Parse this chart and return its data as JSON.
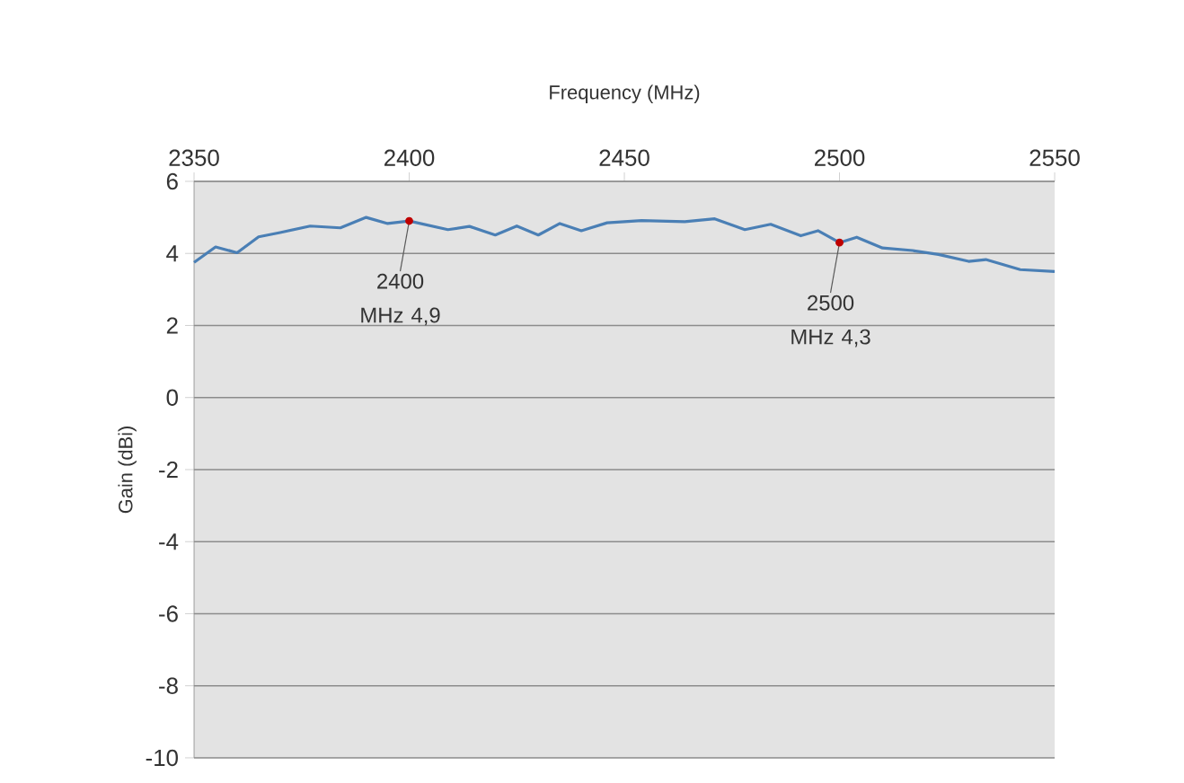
{
  "chart_data": {
    "type": "line",
    "xlabel": "Frequency (MHz)",
    "ylabel": "Gain (dBi)",
    "xlim": [
      2350,
      2550
    ],
    "xticks": [
      2350,
      2400,
      2450,
      2500,
      2550
    ],
    "ylim": [
      -10,
      6
    ],
    "yticks": [
      -10,
      -8,
      -6,
      -4,
      -2,
      0,
      2,
      4,
      6
    ],
    "grid": "y",
    "series": [
      {
        "color": "#4a7fb5",
        "x": [
          2350,
          2355,
          2360,
          2365,
          2370,
          2377,
          2384,
          2390,
          2395,
          2400,
          2409,
          2414,
          2420,
          2425,
          2430,
          2435,
          2440,
          2446,
          2454,
          2464,
          2471,
          2478,
          2484,
          2491,
          2495,
          2500,
          2504,
          2510,
          2517,
          2523,
          2530,
          2534,
          2542,
          2550
        ],
        "values": [
          3.75,
          4.18,
          4.02,
          4.46,
          4.58,
          4.76,
          4.71,
          5.0,
          4.83,
          4.9,
          4.66,
          4.75,
          4.51,
          4.76,
          4.51,
          4.83,
          4.63,
          4.85,
          4.91,
          4.88,
          4.96,
          4.66,
          4.81,
          4.49,
          4.63,
          4.3,
          4.45,
          4.15,
          4.08,
          3.97,
          3.78,
          3.83,
          3.55,
          3.5
        ]
      }
    ],
    "annotations": [
      {
        "text": "2400 MHz 4,9",
        "x": 2400,
        "y": 4.9
      },
      {
        "text": "2500 MHz 4,3",
        "x": 2500,
        "y": 4.3
      }
    ]
  }
}
